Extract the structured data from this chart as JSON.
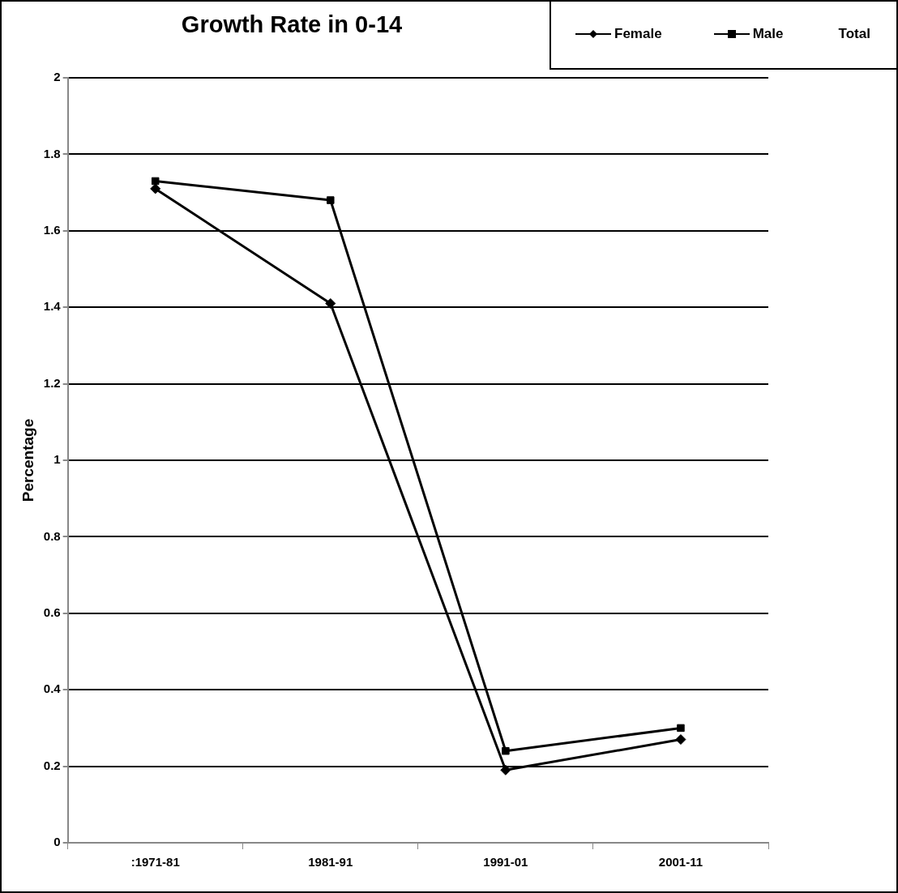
{
  "chart_data": {
    "type": "line",
    "title": "Growth Rate in 0-14",
    "ylabel": "Percentage",
    "categories": [
      ":1971-81",
      "1981-91",
      "1991-01",
      "2001-11"
    ],
    "series": [
      {
        "name": "Female",
        "color": "#000000",
        "marker": "diamond",
        "values": [
          1.71,
          1.41,
          0.19,
          0.27
        ]
      },
      {
        "name": "Male",
        "color": "#000000",
        "marker": "square",
        "values": [
          1.73,
          1.68,
          0.24,
          0.3
        ]
      },
      {
        "name": "Total",
        "values": [
          null,
          null,
          null,
          null
        ]
      }
    ],
    "ylim": [
      0,
      2
    ],
    "yticks": [
      0,
      0.2,
      0.4,
      0.6,
      0.8,
      1,
      1.2,
      1.4,
      1.6,
      1.8,
      2
    ],
    "grid": "y",
    "legend": "top right"
  }
}
